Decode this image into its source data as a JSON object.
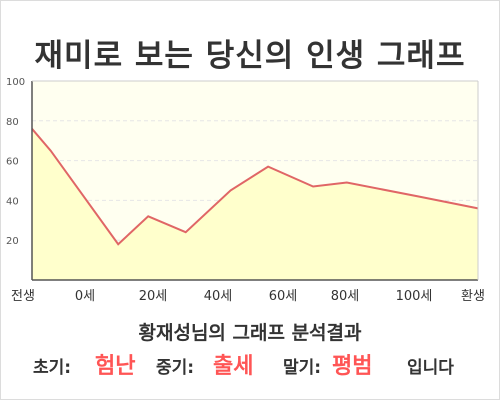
{
  "title": "재미로 보는 당신의 인생 그래프",
  "caption": "황재성님의 그래프 분석결과",
  "result": {
    "early_label": "초기:",
    "early_value": "험난",
    "mid_label": "중기:",
    "mid_value": "출세",
    "late_label": "말기:",
    "late_value": "평범",
    "suffix": "입니다"
  },
  "colors": {
    "line": "#e06666",
    "fill": "#ffffcc",
    "highlight": "#ff5555",
    "axis": "#555555",
    "grid": "#e6e6e6"
  },
  "chart_data": {
    "type": "area",
    "title": "재미로 보는 당신의 인생 그래프",
    "xlabel": "",
    "ylabel": "",
    "x_categories": [
      "전생",
      "0세",
      "20세",
      "40세",
      "60세",
      "80세",
      "100세",
      "환생"
    ],
    "ylim": [
      0,
      100
    ],
    "yticks": [
      20,
      40,
      60,
      80,
      100
    ],
    "grid": true,
    "legend": "none",
    "series": [
      {
        "points": [
          {
            "x": -5,
            "y": 76
          },
          {
            "x": 0,
            "y": 65
          },
          {
            "x": 18,
            "y": 18
          },
          {
            "x": 26,
            "y": 32
          },
          {
            "x": 36,
            "y": 24
          },
          {
            "x": 48,
            "y": 45
          },
          {
            "x": 58,
            "y": 57
          },
          {
            "x": 70,
            "y": 47
          },
          {
            "x": 79,
            "y": 49
          },
          {
            "x": 98,
            "y": 42
          },
          {
            "x": 114,
            "y": 36
          }
        ]
      }
    ]
  }
}
